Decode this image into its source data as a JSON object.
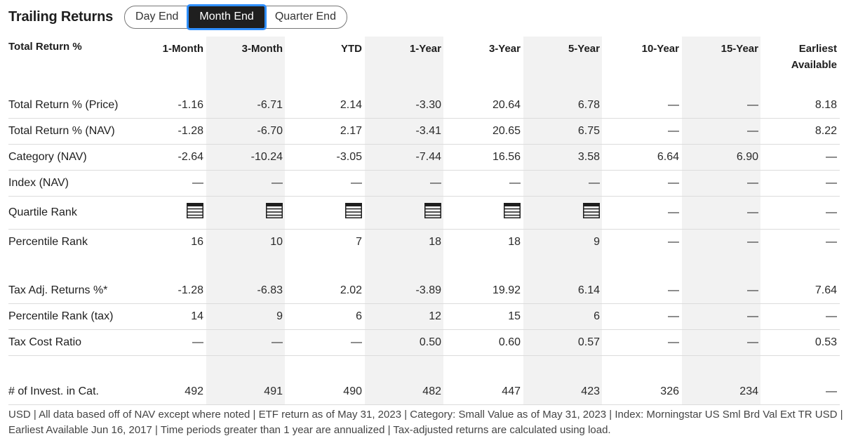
{
  "header": {
    "title": "Trailing Returns",
    "tabs": [
      {
        "label": "Day End",
        "active": false
      },
      {
        "label": "Month End",
        "active": true
      },
      {
        "label": "Quarter End",
        "active": false
      }
    ]
  },
  "table": {
    "columns": [
      "Total Return %",
      "1-Month",
      "3-Month",
      "YTD",
      "1-Year",
      "3-Year",
      "5-Year",
      "10-Year",
      "15-Year",
      "Earliest Available"
    ],
    "rows": [
      {
        "label": "Total Return % (Price)",
        "values": [
          "-1.16",
          "-6.71",
          "2.14",
          "-3.30",
          "20.64",
          "6.78",
          "—",
          "—",
          "8.18"
        ]
      },
      {
        "label": "Total Return % (NAV)",
        "values": [
          "-1.28",
          "-6.70",
          "2.17",
          "-3.41",
          "20.65",
          "6.75",
          "—",
          "—",
          "8.22"
        ]
      },
      {
        "label": "Category (NAV)",
        "values": [
          "-2.64",
          "-10.24",
          "-3.05",
          "-7.44",
          "16.56",
          "3.58",
          "6.64",
          "6.90",
          "—"
        ]
      },
      {
        "label": "Index (NAV)",
        "values": [
          "—",
          "—",
          "—",
          "—",
          "—",
          "—",
          "—",
          "—",
          "—"
        ]
      },
      {
        "label": "Quartile Rank",
        "values": [
          "quartile-icon",
          "quartile-icon",
          "quartile-icon",
          "quartile-icon",
          "quartile-icon",
          "quartile-icon",
          "—",
          "—",
          "—"
        ]
      },
      {
        "label": "Percentile Rank",
        "values": [
          "16",
          "10",
          "7",
          "18",
          "18",
          "9",
          "—",
          "—",
          "—"
        ]
      },
      {
        "label": "Tax Adj. Returns %*",
        "values": [
          "-1.28",
          "-6.83",
          "2.02",
          "-3.89",
          "19.92",
          "6.14",
          "—",
          "—",
          "7.64"
        ]
      },
      {
        "label": "Percentile Rank (tax)",
        "values": [
          "14",
          "9",
          "6",
          "12",
          "15",
          "6",
          "—",
          "—",
          "—"
        ]
      },
      {
        "label": "Tax Cost Ratio",
        "values": [
          "—",
          "—",
          "—",
          "0.50",
          "0.60",
          "0.57",
          "—",
          "—",
          "0.53"
        ]
      },
      {
        "label": "# of Invest. in Cat.",
        "values": [
          "492",
          "491",
          "490",
          "482",
          "447",
          "423",
          "326",
          "234",
          "—"
        ]
      }
    ]
  },
  "footer": {
    "line1": "USD | All data based off of NAV except where noted | ETF return as of May 31, 2023 | Category: Small Value as of May 31, 2023 | Index: Morningstar US Sml Brd Val Ext TR USD |",
    "line2": "Earliest Available Jun 16, 2017 | Time periods greater than 1 year are annualized | Tax-adjusted returns are calculated using load."
  }
}
